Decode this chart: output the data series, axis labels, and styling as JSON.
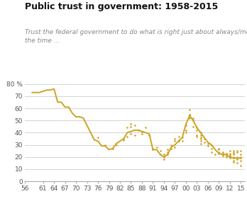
{
  "title": "Public trust in government: 1958-2015",
  "subtitle": "Trust the federal government to do what is right just about always/most of\nthe time ...",
  "line_color": "#CDA323",
  "dot_color": "#CDA323",
  "background_color": "#ffffff",
  "grid_color": "#cccccc",
  "xlim": [
    1956,
    2016
  ],
  "ylim": [
    0,
    83
  ],
  "yticks": [
    0,
    10,
    20,
    30,
    40,
    50,
    60,
    70,
    80
  ],
  "ytick_labels": [
    "0",
    "10",
    "20",
    "30",
    "40",
    "50",
    "60",
    "70",
    "80 %"
  ],
  "xtick_labels": [
    "56",
    "61",
    "64",
    "67",
    "70",
    "73",
    "76",
    "79",
    "82",
    "85",
    "88",
    "91",
    "94",
    "97",
    "00",
    "03",
    "06",
    "09",
    "12",
    "15"
  ],
  "xtick_positions": [
    1956,
    1961,
    1964,
    1967,
    1970,
    1973,
    1976,
    1979,
    1982,
    1985,
    1988,
    1991,
    1994,
    1997,
    2000,
    2003,
    2006,
    2009,
    2012,
    2015
  ],
  "line_data": [
    [
      1958,
      73
    ],
    [
      1960,
      73
    ],
    [
      1962,
      75
    ],
    [
      1963,
      75
    ],
    [
      1964,
      76
    ],
    [
      1965,
      65
    ],
    [
      1966,
      65
    ],
    [
      1967,
      61
    ],
    [
      1968,
      61
    ],
    [
      1969,
      56
    ],
    [
      1970,
      53
    ],
    [
      1971,
      53
    ],
    [
      1972,
      52
    ],
    [
      1973,
      46
    ],
    [
      1974,
      40
    ],
    [
      1975,
      34
    ],
    [
      1976,
      33
    ],
    [
      1977,
      29
    ],
    [
      1978,
      29
    ],
    [
      1979,
      26
    ],
    [
      1980,
      27
    ],
    [
      1981,
      31
    ],
    [
      1982,
      33
    ],
    [
      1983,
      35
    ],
    [
      1984,
      40
    ],
    [
      1985,
      41
    ],
    [
      1986,
      42
    ],
    [
      1987,
      42
    ],
    [
      1988,
      41
    ],
    [
      1989,
      40
    ],
    [
      1990,
      39
    ],
    [
      1991,
      26
    ],
    [
      1992,
      26
    ],
    [
      1993,
      22
    ],
    [
      1994,
      20
    ],
    [
      1995,
      22
    ],
    [
      1996,
      28
    ],
    [
      1997,
      30
    ],
    [
      1998,
      33
    ],
    [
      1999,
      36
    ],
    [
      2000,
      47
    ],
    [
      2001,
      54
    ],
    [
      2002,
      50
    ],
    [
      2003,
      44
    ],
    [
      2004,
      40
    ],
    [
      2005,
      36
    ],
    [
      2006,
      32
    ],
    [
      2007,
      30
    ],
    [
      2008,
      26
    ],
    [
      2009,
      23
    ],
    [
      2010,
      22
    ],
    [
      2011,
      22
    ],
    [
      2012,
      20
    ],
    [
      2013,
      19
    ],
    [
      2014,
      19
    ],
    [
      2015,
      19
    ]
  ],
  "scatter_data": [
    [
      1976,
      36
    ],
    [
      1978,
      30
    ],
    [
      1980,
      27
    ],
    [
      1981,
      30
    ],
    [
      1983,
      35
    ],
    [
      1983,
      34
    ],
    [
      1984,
      37
    ],
    [
      1984,
      44
    ],
    [
      1985,
      39
    ],
    [
      1985,
      47
    ],
    [
      1985,
      45
    ],
    [
      1986,
      38
    ],
    [
      1986,
      46
    ],
    [
      1987,
      42
    ],
    [
      1988,
      41
    ],
    [
      1988,
      39
    ],
    [
      1989,
      44
    ],
    [
      1990,
      38
    ],
    [
      1991,
      26
    ],
    [
      1991,
      27
    ],
    [
      1992,
      28
    ],
    [
      1993,
      22
    ],
    [
      1993,
      25
    ],
    [
      1994,
      20
    ],
    [
      1994,
      18
    ],
    [
      1994,
      22
    ],
    [
      1995,
      22
    ],
    [
      1995,
      24
    ],
    [
      1995,
      26
    ],
    [
      1996,
      27
    ],
    [
      1996,
      30
    ],
    [
      1997,
      28
    ],
    [
      1997,
      33
    ],
    [
      1997,
      35
    ],
    [
      1998,
      34
    ],
    [
      1998,
      37
    ],
    [
      1998,
      33
    ],
    [
      1999,
      36
    ],
    [
      1999,
      33
    ],
    [
      2000,
      40
    ],
    [
      2000,
      42
    ],
    [
      2000,
      46
    ],
    [
      2001,
      55
    ],
    [
      2001,
      52
    ],
    [
      2001,
      55
    ],
    [
      2001,
      59
    ],
    [
      2002,
      52
    ],
    [
      2002,
      50
    ],
    [
      2002,
      45
    ],
    [
      2003,
      44
    ],
    [
      2003,
      42
    ],
    [
      2003,
      38
    ],
    [
      2003,
      37
    ],
    [
      2004,
      40
    ],
    [
      2004,
      38
    ],
    [
      2004,
      35
    ],
    [
      2004,
      36
    ],
    [
      2004,
      31
    ],
    [
      2004,
      33
    ],
    [
      2005,
      32
    ],
    [
      2005,
      35
    ],
    [
      2006,
      31
    ],
    [
      2006,
      29
    ],
    [
      2007,
      30
    ],
    [
      2007,
      27
    ],
    [
      2007,
      24
    ],
    [
      2008,
      22
    ],
    [
      2009,
      23
    ],
    [
      2009,
      26
    ],
    [
      2009,
      24
    ],
    [
      2009,
      27
    ],
    [
      2010,
      21
    ],
    [
      2010,
      22
    ],
    [
      2010,
      24
    ],
    [
      2010,
      23
    ],
    [
      2010,
      22
    ],
    [
      2011,
      20
    ],
    [
      2011,
      23
    ],
    [
      2011,
      21
    ],
    [
      2011,
      23
    ],
    [
      2012,
      20
    ],
    [
      2012,
      22
    ],
    [
      2012,
      23
    ],
    [
      2012,
      25
    ],
    [
      2012,
      21
    ],
    [
      2012,
      19
    ],
    [
      2013,
      19
    ],
    [
      2013,
      20
    ],
    [
      2013,
      24
    ],
    [
      2013,
      22
    ],
    [
      2013,
      23
    ],
    [
      2013,
      25
    ],
    [
      2013,
      16
    ],
    [
      2013,
      17
    ],
    [
      2014,
      18
    ],
    [
      2014,
      20
    ],
    [
      2014,
      15
    ],
    [
      2014,
      25
    ],
    [
      2014,
      24
    ],
    [
      2015,
      19
    ],
    [
      2015,
      20
    ],
    [
      2015,
      25
    ],
    [
      2015,
      22
    ],
    [
      2015,
      13
    ],
    [
      2015,
      17
    ]
  ],
  "title_fontsize": 9,
  "subtitle_fontsize": 6.5,
  "tick_fontsize": 6.5,
  "title_color": "#111111",
  "subtitle_color": "#888888",
  "tick_color": "#555555"
}
